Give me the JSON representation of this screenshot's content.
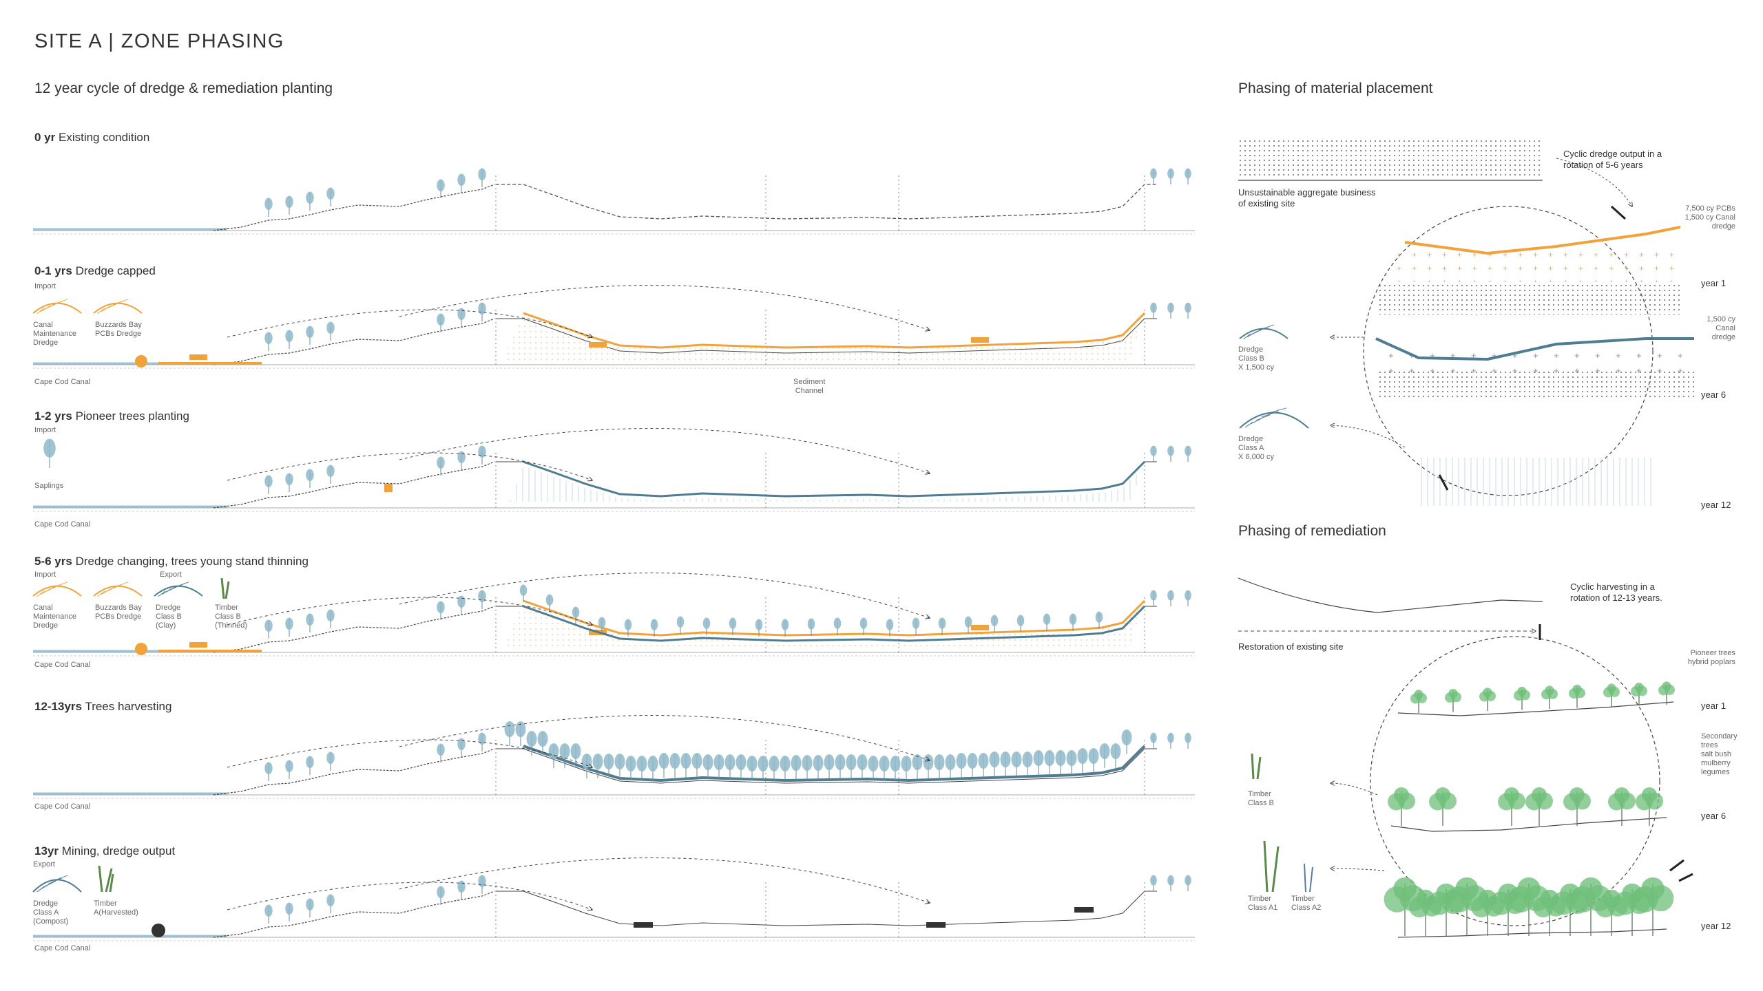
{
  "title": "SITE A | ZONE PHASING",
  "cycle_heading": "12 year cycle of dredge & remediation planting",
  "rows": [
    {
      "year": "0 yr",
      "desc": "Existing condition"
    },
    {
      "year": "0-1 yrs",
      "desc": "Dredge capped"
    },
    {
      "year": "1-2 yrs",
      "desc": "Pioneer trees planting"
    },
    {
      "year": "5-6 yrs",
      "desc": "Dredge changing, trees young stand thinning"
    },
    {
      "year": "12-13yrs",
      "desc": "Trees harvesting"
    },
    {
      "year": "13yr",
      "desc": "Mining, dredge output"
    }
  ],
  "labels": {
    "import": "Import",
    "export": "Export",
    "canal_maintenance_dredge": "Canal\nMaintenance\nDredge",
    "buzzards_bay": "Buzzards Bay\nPCBs Dredge",
    "cape_cod_canal": "Cape Cod Canal",
    "sediment_channel": "Sediment\nChannel",
    "saplings": "Saplings",
    "dredge_class_b_clay": "Dredge\nClass B\n(Clay)",
    "timber_class_b_thinned": "Timber\nClass B\n(Thinned)",
    "dredge_class_a_compost": "Dredge\nClass A\n(Compost)",
    "timber_a_harvested": "Timber\nA(Harvested)"
  },
  "material": {
    "heading": "Phasing of material placement",
    "cyclic_note": "Cyclic dredge output in a\nrotation of 5-6 years",
    "unsustainable": "Unsustainable aggregate business\nof existing site",
    "pcbs_note": "7,500 cy PCBs\n1,500 cy Canal\ndredge",
    "canal_note": "1,500 cy\nCanal\ndredge",
    "dredge_b": "Dredge\nClass B\nX 1,500 cy",
    "dredge_a": "Dredge\nClass A\nX 6,000 cy",
    "year1": "year 1",
    "year6": "year 6",
    "year12": "year 12"
  },
  "remediation": {
    "heading": "Phasing of remediation",
    "cyclic_note": "Cyclic harvesting in a\nrotation of 12-13 years.",
    "restoration": "Restoration of existing site",
    "pioneer": "Pioneer trees\nhybrid poplars",
    "secondary": "Secondary\ntrees\nsalt bush\nmulberry\nlegumes",
    "timber_b": "Timber\nClass B",
    "timber_a1": "Timber\nClass A1",
    "timber_a2": "Timber\nClass A2",
    "year1": "year 1",
    "year6": "year 6",
    "year12": "year 12"
  },
  "colors": {
    "dredge_orange": "#f2a23a",
    "cap_blue": "#4e7d93",
    "tree_blue": "#8fb8c9",
    "tree_green": "#6fbf7a",
    "line_gray": "#555555"
  }
}
